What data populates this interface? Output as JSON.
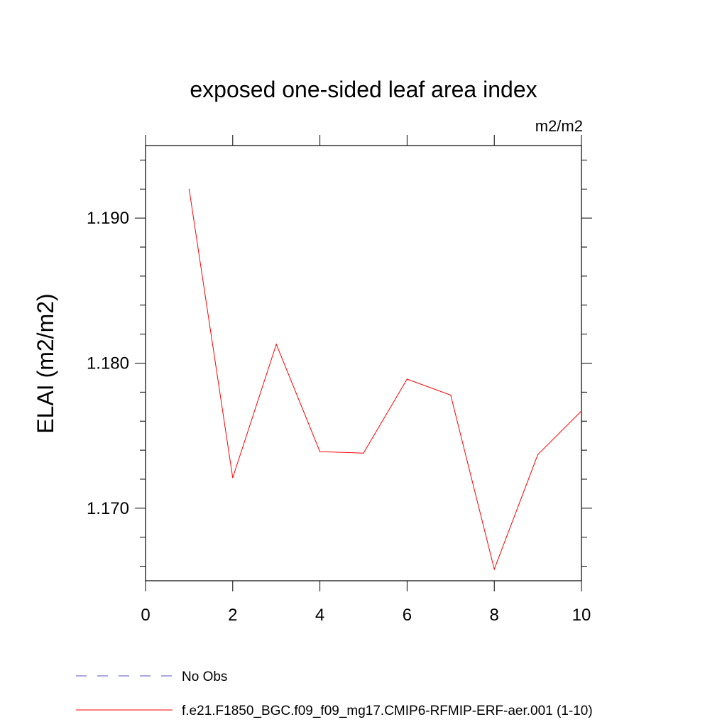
{
  "chart_data": {
    "type": "line",
    "title": "exposed one-sided leaf area index",
    "units_label": "m2/m2",
    "ylabel": "ELAI  (m2/m2)",
    "xlabel": "",
    "xlim": [
      0,
      10
    ],
    "ylim": [
      1.165,
      1.195
    ],
    "x_ticks": [
      0,
      2,
      4,
      6,
      8,
      10
    ],
    "x_tick_labels": [
      "0",
      "2",
      "4",
      "6",
      "8",
      "10"
    ],
    "y_ticks": [
      1.17,
      1.18,
      1.19
    ],
    "y_tick_labels": [
      "1.170",
      "1.180",
      "1.190"
    ],
    "y_minor_step": 0.002,
    "x_minor_step": 2,
    "grid": false,
    "legend_position": "bottom",
    "series": [
      {
        "name": "f.e21.F1850_BGC.f09_f09_mg17.CMIP6-RFMIP-ERF-aer.001 (1-10)",
        "color": "#ff0000",
        "dash": "solid",
        "x": [
          1,
          2,
          3,
          4,
          5,
          6,
          7,
          8,
          9,
          10
        ],
        "values": [
          1.192,
          1.1721,
          1.1813,
          1.1739,
          1.1738,
          1.1789,
          1.1778,
          1.1658,
          1.1737,
          1.1767
        ]
      }
    ],
    "legend": [
      {
        "label": "No Obs",
        "color": "#5a4fc4",
        "dash": "dashed"
      },
      {
        "label": "f.e21.F1850_BGC.f09_f09_mg17.CMIP6-RFMIP-ERF-aer.001 (1-10)",
        "color": "#ff0000",
        "dash": "solid"
      }
    ]
  }
}
